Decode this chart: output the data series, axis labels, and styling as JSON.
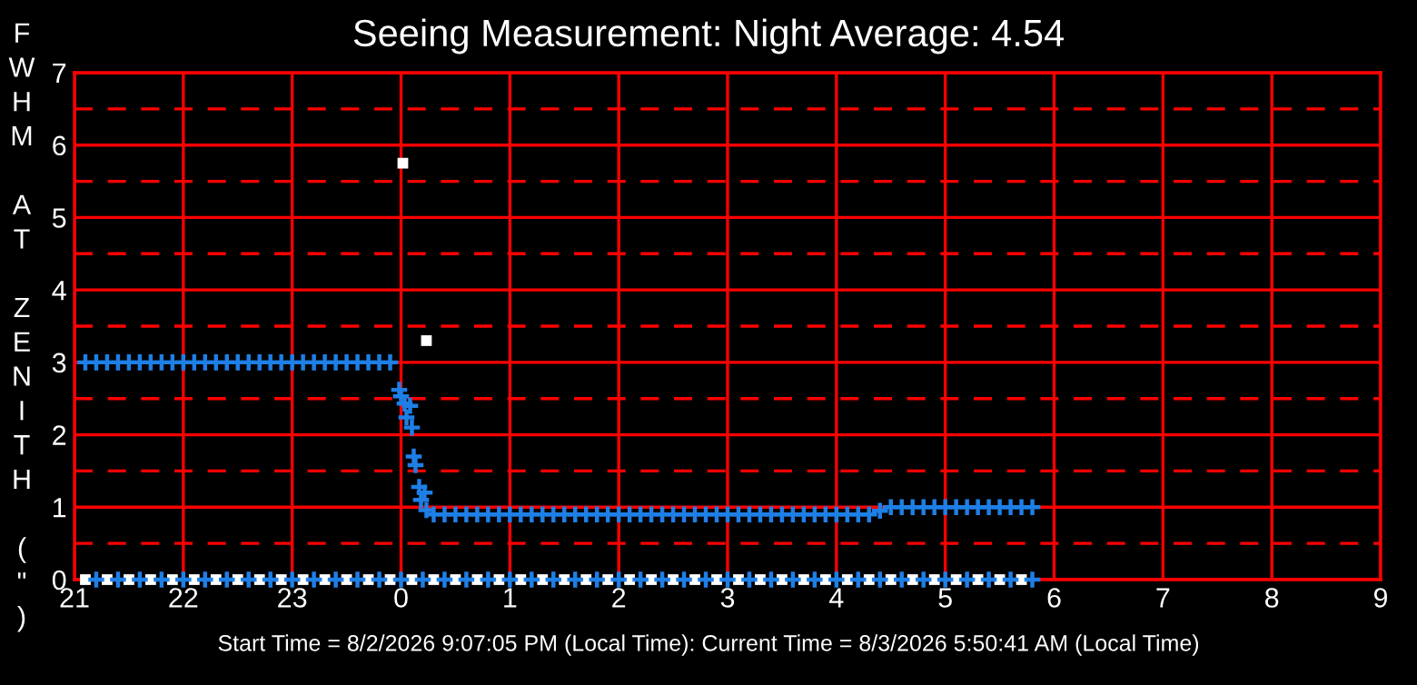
{
  "chart_data": {
    "type": "scatter",
    "title": "Seeing Measurement: Night Average: 4.54",
    "ylabel": "FWHM AT ZENITH (\")",
    "annotations": [
      "Start Time = 8/2/2026 9:07:05 PM (Local Time): Current Time = 8/3/2026 5:50:41 AM (Local Time)"
    ],
    "xlim": [
      "2026-08-02T21:00",
      "2026-08-03T09:00"
    ],
    "ylim": [
      0,
      7
    ],
    "xticks": [
      {
        "value": "2026-08-02T21:00",
        "label": "21"
      },
      {
        "value": "2026-08-02T22:00",
        "label": "22"
      },
      {
        "value": "2026-08-02T23:00",
        "label": "23"
      },
      {
        "value": "2026-08-03T00:00",
        "label": "0"
      },
      {
        "value": "2026-08-03T01:00",
        "label": "1"
      },
      {
        "value": "2026-08-03T02:00",
        "label": "2"
      },
      {
        "value": "2026-08-03T03:00",
        "label": "3"
      },
      {
        "value": "2026-08-03T04:00",
        "label": "4"
      },
      {
        "value": "2026-08-03T05:00",
        "label": "5"
      },
      {
        "value": "2026-08-03T06:00",
        "label": "6"
      },
      {
        "value": "2026-08-03T07:00",
        "label": "7"
      },
      {
        "value": "2026-08-03T08:00",
        "label": "8"
      },
      {
        "value": "2026-08-03T09:00",
        "label": "9"
      }
    ],
    "yticks": [
      0,
      1,
      2,
      3,
      4,
      5,
      6,
      7
    ],
    "grid": true,
    "ref_lines": [
      {
        "axis": "y",
        "value": 0.5,
        "color": "#ff0000",
        "line_style": "dashed"
      },
      {
        "axis": "y",
        "value": 1.5,
        "color": "#ff0000",
        "line_style": "dashed"
      },
      {
        "axis": "y",
        "value": 2.5,
        "color": "#ff0000",
        "line_style": "dashed"
      },
      {
        "axis": "y",
        "value": 3.5,
        "color": "#ff0000",
        "line_style": "dashed"
      },
      {
        "axis": "y",
        "value": 4.5,
        "color": "#ff0000",
        "line_style": "dashed"
      },
      {
        "axis": "y",
        "value": 5.5,
        "color": "#ff0000",
        "line_style": "dashed"
      },
      {
        "axis": "y",
        "value": 6.5,
        "color": "#ff0000",
        "line_style": "dashed"
      }
    ],
    "series": [
      {
        "color": "#ffffff",
        "marker": "square",
        "x": [
          "2026-08-03T00:01",
          "2026-08-03T00:14",
          "2026-08-02T21:06",
          "2026-08-02T21:18",
          "2026-08-02T21:30",
          "2026-08-02T21:42",
          "2026-08-02T21:54",
          "2026-08-02T22:06",
          "2026-08-02T22:18",
          "2026-08-02T22:30",
          "2026-08-02T22:42",
          "2026-08-02T22:54",
          "2026-08-02T23:06",
          "2026-08-02T23:18",
          "2026-08-02T23:30",
          "2026-08-02T23:42",
          "2026-08-02T23:54",
          "2026-08-03T00:06",
          "2026-08-03T00:18",
          "2026-08-03T00:30",
          "2026-08-03T00:42",
          "2026-08-03T00:54",
          "2026-08-03T01:06",
          "2026-08-03T01:18",
          "2026-08-03T01:30",
          "2026-08-03T01:42",
          "2026-08-03T01:54",
          "2026-08-03T02:06",
          "2026-08-03T02:18",
          "2026-08-03T02:30",
          "2026-08-03T02:42",
          "2026-08-03T02:54",
          "2026-08-03T03:06",
          "2026-08-03T03:18",
          "2026-08-03T03:30",
          "2026-08-03T03:42",
          "2026-08-03T03:54",
          "2026-08-03T04:06",
          "2026-08-03T04:18",
          "2026-08-03T04:30",
          "2026-08-03T04:42",
          "2026-08-03T04:54",
          "2026-08-03T05:06",
          "2026-08-03T05:18",
          "2026-08-03T05:30",
          "2026-08-03T05:42"
        ],
        "values": [
          5.75,
          3.3,
          0,
          0,
          0,
          0,
          0,
          0,
          0,
          0,
          0,
          0,
          0,
          0,
          0,
          0,
          0,
          0,
          0,
          0,
          0,
          0,
          0,
          0,
          0,
          0,
          0,
          0,
          0,
          0,
          0,
          0,
          0,
          0,
          0,
          0,
          0,
          0,
          0,
          0,
          0,
          0,
          0,
          0,
          0,
          0
        ]
      },
      {
        "color": "#1e7fe6",
        "marker": "cross",
        "x": [
          "2026-08-02T21:12",
          "2026-08-02T21:24",
          "2026-08-02T21:36",
          "2026-08-02T21:48",
          "2026-08-02T22:00",
          "2026-08-02T22:12",
          "2026-08-02T22:24",
          "2026-08-02T22:36",
          "2026-08-02T22:48",
          "2026-08-02T23:00",
          "2026-08-02T23:12",
          "2026-08-02T23:24",
          "2026-08-02T23:36",
          "2026-08-02T23:48",
          "2026-08-03T00:00",
          "2026-08-03T00:12",
          "2026-08-03T00:24",
          "2026-08-03T00:36",
          "2026-08-03T00:48",
          "2026-08-03T01:00",
          "2026-08-03T01:12",
          "2026-08-03T01:24",
          "2026-08-03T01:36",
          "2026-08-03T01:48",
          "2026-08-03T02:00",
          "2026-08-03T02:12",
          "2026-08-03T02:24",
          "2026-08-03T02:36",
          "2026-08-03T02:48",
          "2026-08-03T03:00",
          "2026-08-03T03:12",
          "2026-08-03T03:24",
          "2026-08-03T03:36",
          "2026-08-03T03:48",
          "2026-08-03T04:00",
          "2026-08-03T04:12",
          "2026-08-03T04:24",
          "2026-08-03T04:36",
          "2026-08-03T04:48",
          "2026-08-03T05:00",
          "2026-08-03T05:12",
          "2026-08-03T05:24",
          "2026-08-03T05:36",
          "2026-08-03T05:48"
        ],
        "values": [
          0,
          0,
          0,
          0,
          0,
          0,
          0,
          0,
          0,
          0,
          0,
          0,
          0,
          0,
          0,
          0,
          0,
          0,
          0,
          0,
          0,
          0,
          0,
          0,
          0,
          0,
          0,
          0,
          0,
          0,
          0,
          0,
          0,
          0,
          0,
          0,
          0,
          0,
          0,
          0,
          0,
          0,
          0,
          0
        ]
      },
      {
        "color": "#1e7fe6",
        "marker": "cross",
        "x": [
          "2026-08-02T21:06",
          "2026-08-02T21:12",
          "2026-08-02T21:18",
          "2026-08-02T21:24",
          "2026-08-02T21:30",
          "2026-08-02T21:36",
          "2026-08-02T21:42",
          "2026-08-02T21:48",
          "2026-08-02T21:54",
          "2026-08-02T22:00",
          "2026-08-02T22:06",
          "2026-08-02T22:12",
          "2026-08-02T22:18",
          "2026-08-02T22:24",
          "2026-08-02T22:30",
          "2026-08-02T22:36",
          "2026-08-02T22:42",
          "2026-08-02T22:48",
          "2026-08-02T22:54",
          "2026-08-02T23:00",
          "2026-08-02T23:06",
          "2026-08-02T23:12",
          "2026-08-02T23:18",
          "2026-08-02T23:24",
          "2026-08-02T23:30",
          "2026-08-02T23:36",
          "2026-08-02T23:42",
          "2026-08-02T23:48",
          "2026-08-02T23:54",
          "2026-08-02T23:59",
          "2026-08-03T00:00",
          "2026-08-03T00:02",
          "2026-08-03T00:05",
          "2026-08-03T00:03",
          "2026-08-03T00:06",
          "2026-08-03T00:07",
          "2026-08-03T00:08",
          "2026-08-03T00:10",
          "2026-08-03T00:13",
          "2026-08-03T00:11",
          "2026-08-03T00:14",
          "2026-08-03T00:18",
          "2026-08-03T00:24",
          "2026-08-03T00:30",
          "2026-08-03T00:36",
          "2026-08-03T00:42",
          "2026-08-03T00:48",
          "2026-08-03T00:54",
          "2026-08-03T01:00",
          "2026-08-03T01:06",
          "2026-08-03T01:12",
          "2026-08-03T01:18",
          "2026-08-03T01:24",
          "2026-08-03T01:30",
          "2026-08-03T01:36",
          "2026-08-03T01:42",
          "2026-08-03T01:48",
          "2026-08-03T01:54",
          "2026-08-03T02:00",
          "2026-08-03T02:06",
          "2026-08-03T02:12",
          "2026-08-03T02:18",
          "2026-08-03T02:24",
          "2026-08-03T02:30",
          "2026-08-03T02:36",
          "2026-08-03T02:42",
          "2026-08-03T02:48",
          "2026-08-03T02:54",
          "2026-08-03T03:00",
          "2026-08-03T03:06",
          "2026-08-03T03:12",
          "2026-08-03T03:18",
          "2026-08-03T03:24",
          "2026-08-03T03:30",
          "2026-08-03T03:36",
          "2026-08-03T03:42",
          "2026-08-03T03:48",
          "2026-08-03T03:54",
          "2026-08-03T04:00",
          "2026-08-03T04:06",
          "2026-08-03T04:12",
          "2026-08-03T04:18",
          "2026-08-03T04:24",
          "2026-08-03T04:30",
          "2026-08-03T04:36",
          "2026-08-03T04:42",
          "2026-08-03T04:48",
          "2026-08-03T04:54",
          "2026-08-03T05:00",
          "2026-08-03T05:06",
          "2026-08-03T05:12",
          "2026-08-03T05:18",
          "2026-08-03T05:24",
          "2026-08-03T05:30",
          "2026-08-03T05:36",
          "2026-08-03T05:42",
          "2026-08-03T05:48"
        ],
        "values": [
          3,
          3,
          3,
          3,
          3,
          3,
          3,
          3,
          3,
          3,
          3,
          3,
          3,
          3,
          3,
          3,
          3,
          3,
          3,
          3,
          3,
          3,
          3,
          3,
          3,
          3,
          3,
          3,
          3,
          2.62,
          2.53,
          2.43,
          2.4,
          2.24,
          2.1,
          1.7,
          1.58,
          1.28,
          1.2,
          1.1,
          0.96,
          0.9,
          0.9,
          0.9,
          0.9,
          0.9,
          0.9,
          0.9,
          0.9,
          0.9,
          0.9,
          0.9,
          0.9,
          0.9,
          0.9,
          0.9,
          0.9,
          0.9,
          0.9,
          0.9,
          0.9,
          0.9,
          0.9,
          0.9,
          0.9,
          0.9,
          0.9,
          0.9,
          0.9,
          0.9,
          0.9,
          0.9,
          0.9,
          0.9,
          0.9,
          0.9,
          0.9,
          0.9,
          0.9,
          0.9,
          0.9,
          0.9,
          0.95,
          1,
          1,
          1,
          1,
          1,
          1,
          1,
          1,
          1,
          1,
          1,
          1,
          1,
          1
        ]
      }
    ]
  }
}
